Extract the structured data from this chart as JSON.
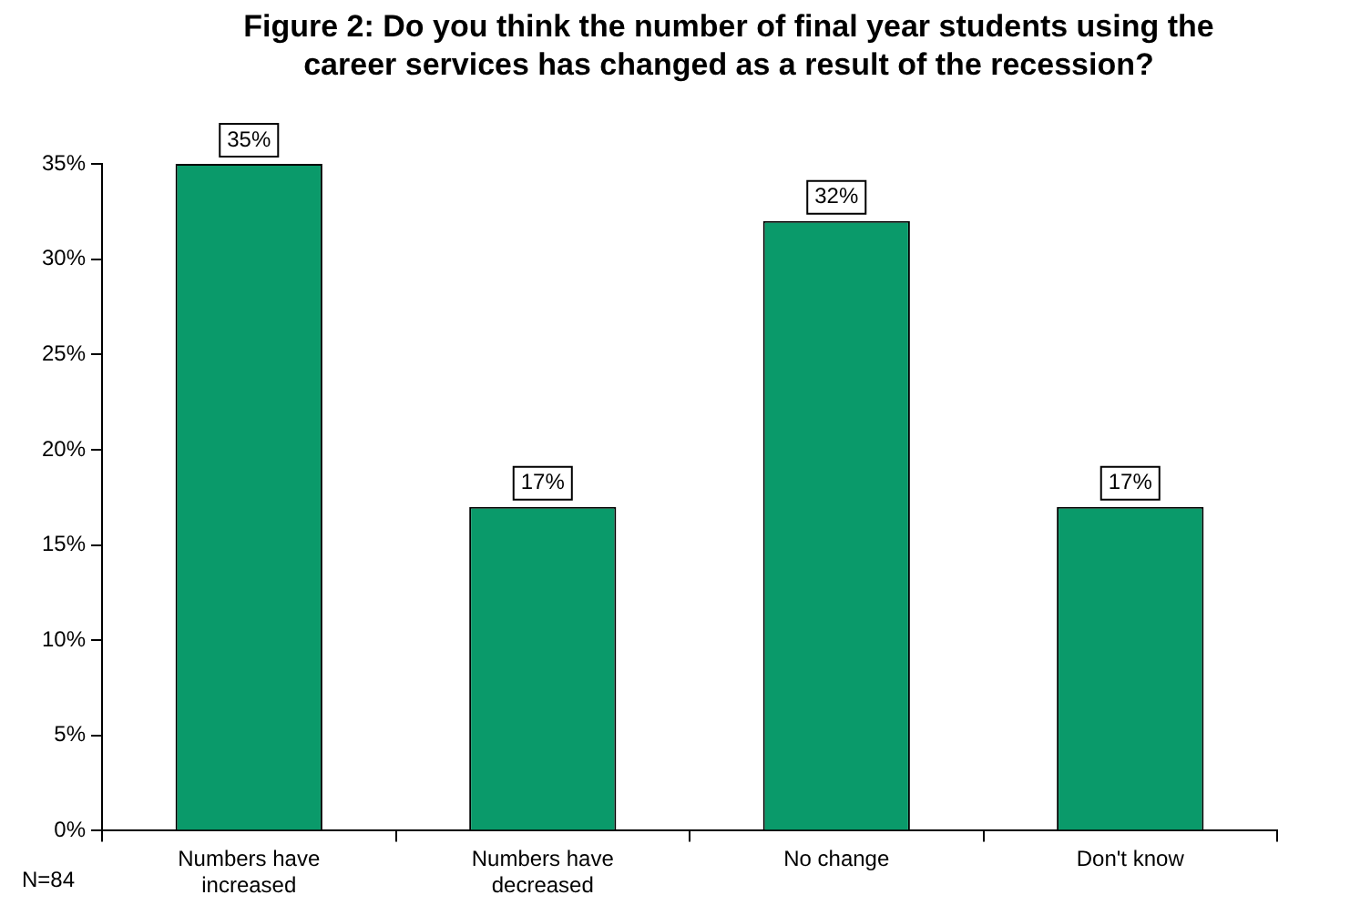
{
  "chart_data": {
    "type": "bar",
    "title": "Figure 2: Do you think the number of final year students using the career services has changed as a result of the recession?",
    "categories": [
      "Numbers have increased",
      "Numbers have decreased",
      "No change",
      "Don't know"
    ],
    "values": [
      35,
      17,
      32,
      17
    ],
    "color": "#0a9a6a",
    "value_labels": [
      "35%",
      "17%",
      "32%",
      "17%"
    ],
    "ylim": [
      0,
      35
    ],
    "yticks": [
      {
        "value": 0,
        "label": "0%"
      },
      {
        "value": 5,
        "label": "5%"
      },
      {
        "value": 10,
        "label": "10%"
      },
      {
        "value": 15,
        "label": "15%"
      },
      {
        "value": 20,
        "label": "20%"
      },
      {
        "value": 25,
        "label": "25%"
      },
      {
        "value": 30,
        "label": "30%"
      },
      {
        "value": 35,
        "label": "35%"
      }
    ],
    "grid": false,
    "legend": false,
    "annotations": [
      "N=84"
    ]
  }
}
